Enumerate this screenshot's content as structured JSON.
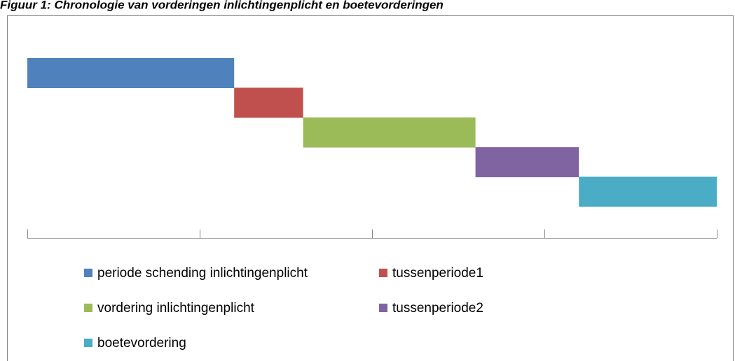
{
  "chart_data": {
    "type": "gantt",
    "title": "Figuur 1: Chronologie van vorderingen inlichtingenplicht en boetevorderingen",
    "xlim": [
      0,
      40
    ],
    "xticks": [
      0,
      10,
      20,
      30,
      40
    ],
    "series": [
      {
        "name": "periode schending inlichtingenplicht",
        "color": "#4f81bd",
        "value": 12
      },
      {
        "name": "tussenperiode1",
        "color": "#c0504d",
        "value": 4
      },
      {
        "name": "vordering inlichtingenplicht",
        "color": "#9bbb59",
        "value": 10
      },
      {
        "name": "tussenperiode2",
        "color": "#8064a2",
        "value": 6
      },
      {
        "name": "boetevordering",
        "color": "#4bacc6",
        "value": 8
      }
    ]
  }
}
